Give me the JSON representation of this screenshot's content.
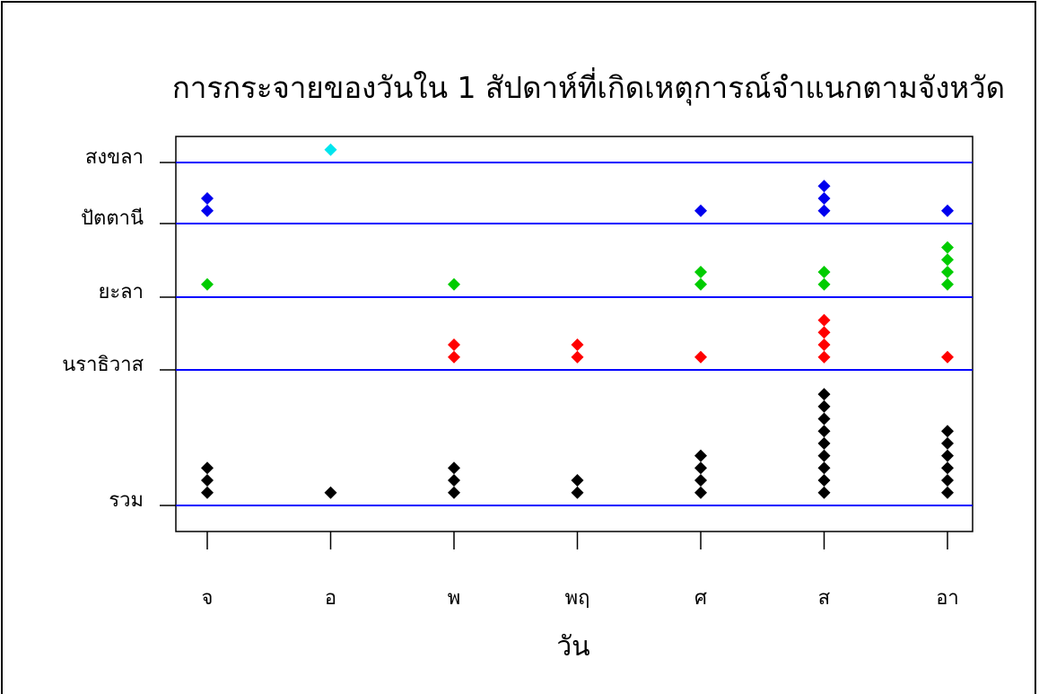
{
  "chart_data": {
    "type": "scatter",
    "title": "การกระจายของวันใน 1 สัปดาห์ที่เกิดเหตุการณ์จำแนกตามจังหวัด",
    "xlabel": "วัน",
    "ylabel": "",
    "categories": [
      "จ",
      "อ",
      "พ",
      "พฤ",
      "ศ",
      "ส",
      "อา"
    ],
    "groups": [
      "รวม",
      "นราธิวาส",
      "ยะลา",
      "ปัตตานี",
      "สงขลา"
    ],
    "grid": false,
    "legend": "none",
    "series": [
      {
        "group": "รวม",
        "color": "#000000",
        "counts": [
          3,
          1,
          3,
          2,
          4,
          9,
          6
        ]
      },
      {
        "group": "นราธิวาส",
        "color": "#ff0000",
        "counts": [
          0,
          0,
          2,
          2,
          1,
          4,
          1
        ]
      },
      {
        "group": "ยะลา",
        "color": "#00cc00",
        "counts": [
          1,
          0,
          1,
          0,
          2,
          2,
          4
        ]
      },
      {
        "group": "ปัตตานี",
        "color": "#0000ee",
        "counts": [
          2,
          0,
          0,
          0,
          1,
          3,
          1
        ]
      },
      {
        "group": "สงขลา",
        "color": "#00e5ee",
        "counts": [
          0,
          1,
          0,
          0,
          0,
          0,
          0
        ]
      }
    ],
    "reference_line_color": "#0000ff"
  }
}
